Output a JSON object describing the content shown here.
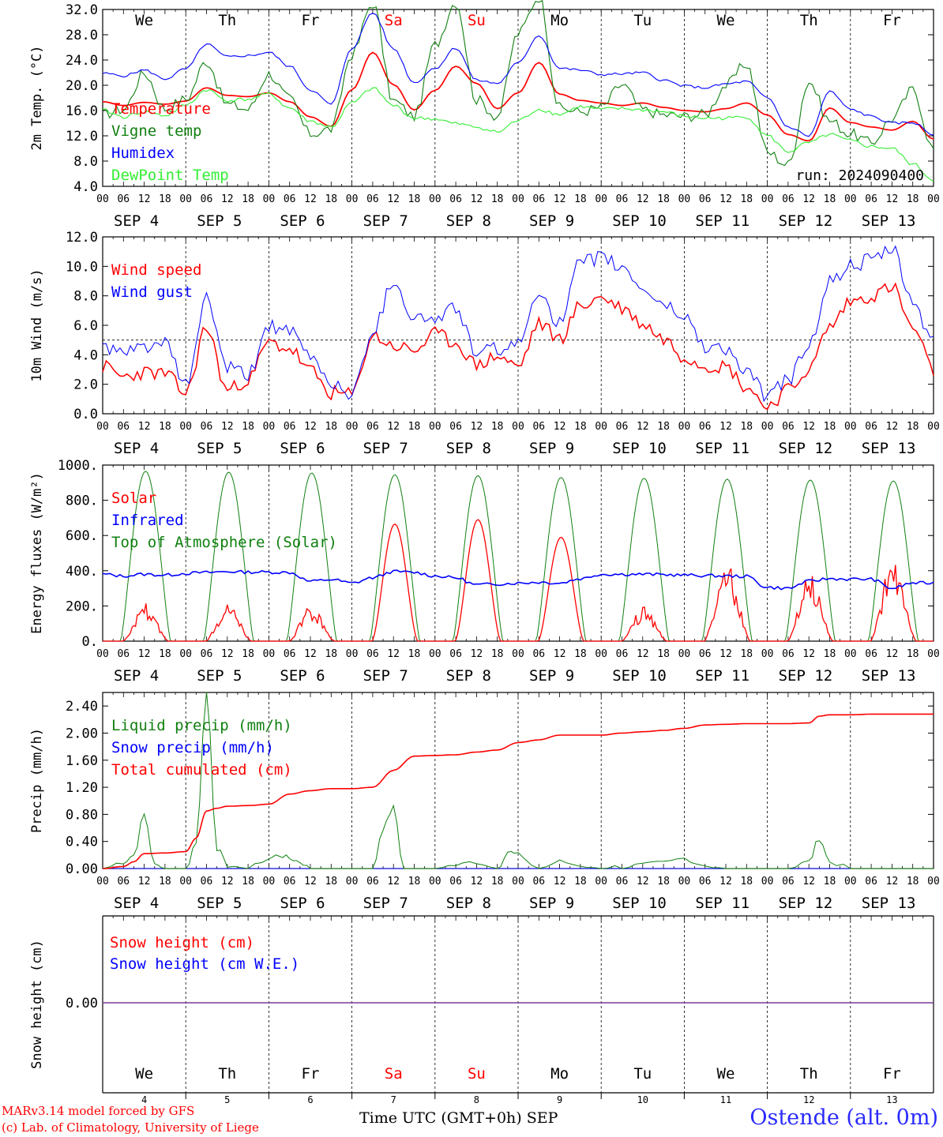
{
  "colors": {
    "red": "#ff0000",
    "green": "#108010",
    "blue": "#0000ff",
    "lightgreen": "#33ee33",
    "weekend": "#ff0000",
    "axis": "#000000",
    "snow_line": "#7a3a9a"
  },
  "day_labels": [
    "We",
    "Th",
    "Fr",
    "Sa",
    "Su",
    "Mo",
    "Tu",
    "We",
    "Th",
    "Fr"
  ],
  "weekend_days": [
    "Sa",
    "Su"
  ],
  "hour_ticks": [
    "00",
    "06",
    "12",
    "18"
  ],
  "date_labels": [
    "SEP  4",
    "SEP  5",
    "SEP  6",
    "SEP  7",
    "SEP  8",
    "SEP  9",
    "SEP 10",
    "SEP 11",
    "SEP 12",
    "SEP 13"
  ],
  "bottom_day_numbers": [
    "4",
    "5",
    "6",
    "7",
    "8",
    "9",
    "10",
    "11",
    "12",
    "13"
  ],
  "footer": {
    "credit_line1": "MARv3.14 model forced by GFS",
    "credit_line2": "(c) Lab. of Climatology, University of Liege",
    "xaxis_title": "Time UTC (GMT+0h) SEP",
    "station": "Ostende (alt. 0m)"
  },
  "chart_data": [
    {
      "type": "line",
      "ylabel": "2m Temp. (°C)",
      "ylim": [
        4.0,
        32.0
      ],
      "yticks": [
        "32.0",
        "28.0",
        "24.0",
        "20.0",
        "16.0",
        "12.0",
        "8.0",
        "4.0"
      ],
      "annotation": "run: 2024090400",
      "x_unit": "hours since 2024-09-04 00 UTC",
      "series": [
        {
          "name": "Temperature",
          "color": "red",
          "x": [
            0,
            6,
            12,
            18,
            24,
            30,
            36,
            42,
            48,
            54,
            60,
            66,
            72,
            78,
            84,
            90,
            96,
            102,
            108,
            114,
            120,
            126,
            132,
            138,
            144,
            150,
            156,
            162,
            168,
            174,
            180,
            186,
            192,
            198,
            204,
            210,
            216,
            222,
            228,
            234,
            240
          ],
          "y": [
            17.4,
            16.8,
            17.3,
            17.0,
            17.5,
            19.6,
            18.4,
            18.2,
            18.8,
            17.4,
            15.0,
            13.5,
            19.3,
            25.2,
            20.1,
            16.1,
            19.2,
            23.0,
            20.3,
            16.3,
            18.8,
            23.6,
            18.6,
            17.6,
            17.2,
            16.8,
            17.2,
            16.5,
            16.0,
            15.8,
            16.3,
            17.2,
            15.3,
            12.2,
            11.2,
            16.4,
            14.1,
            13.4,
            12.9,
            14.3,
            11.5
          ]
        },
        {
          "name": "Vigne temp",
          "color": "green",
          "x": [
            0,
            6,
            12,
            18,
            24,
            30,
            36,
            42,
            48,
            54,
            60,
            66,
            72,
            78,
            84,
            90,
            96,
            102,
            108,
            114,
            120,
            126,
            132,
            138,
            144,
            150,
            156,
            162,
            168,
            174,
            180,
            186,
            192,
            198,
            204,
            210,
            216,
            222,
            228,
            234,
            240
          ],
          "y": [
            15.4,
            16.2,
            21.9,
            16.3,
            17.8,
            23.8,
            17.0,
            16.2,
            21.8,
            17.8,
            12.3,
            13.1,
            24.9,
            33.0,
            17.5,
            15.1,
            26.4,
            33.2,
            17.7,
            15.1,
            28.2,
            34.0,
            16.4,
            15.8,
            16.5,
            20.1,
            16.1,
            15.3,
            15.1,
            15.4,
            20.0,
            23.4,
            9.4,
            7.4,
            20.6,
            14.4,
            12.3,
            10.9,
            14.7,
            19.3,
            9.9
          ]
        },
        {
          "name": "Humidex",
          "color": "blue",
          "x": [
            0,
            6,
            12,
            18,
            24,
            30,
            36,
            42,
            48,
            54,
            60,
            66,
            72,
            78,
            84,
            90,
            96,
            102,
            108,
            114,
            120,
            126,
            132,
            138,
            144,
            150,
            156,
            162,
            168,
            174,
            180,
            186,
            192,
            198,
            204,
            210,
            216,
            222,
            228,
            234,
            240
          ],
          "y": [
            21.9,
            21.5,
            22.4,
            21.0,
            22.6,
            26.5,
            24.5,
            24.7,
            25.2,
            23.0,
            19.3,
            17.0,
            25.9,
            31.5,
            25.8,
            20.4,
            22.7,
            25.9,
            20.8,
            20.3,
            23.5,
            27.9,
            22.7,
            22.4,
            21.7,
            21.8,
            22.0,
            20.8,
            19.9,
            19.6,
            20.2,
            20.6,
            18.0,
            13.4,
            12.0,
            19.0,
            16.2,
            15.1,
            14.0,
            14.1,
            12.2
          ]
        },
        {
          "name": "DewPoint Temp",
          "color": "lightgreen",
          "x": [
            0,
            6,
            12,
            18,
            24,
            30,
            36,
            42,
            48,
            54,
            60,
            66,
            72,
            78,
            84,
            90,
            96,
            102,
            108,
            114,
            120,
            126,
            132,
            138,
            144,
            150,
            156,
            162,
            168,
            174,
            180,
            186,
            192,
            198,
            204,
            210,
            216,
            222,
            228,
            234,
            240
          ],
          "y": [
            16.0,
            15.0,
            15.8,
            15.2,
            16.8,
            19.3,
            17.6,
            17.8,
            18.6,
            16.4,
            14.3,
            13.4,
            17.2,
            19.5,
            16.8,
            14.8,
            14.7,
            13.9,
            13.4,
            12.6,
            14.4,
            16.2,
            15.4,
            16.6,
            16.2,
            16.3,
            16.1,
            15.8,
            15.1,
            14.8,
            14.8,
            15.0,
            12.0,
            9.5,
            10.9,
            12.2,
            11.2,
            10.3,
            10.0,
            7.5,
            5.0
          ]
        }
      ]
    },
    {
      "type": "line",
      "ylabel": "10m Wind (m/s)",
      "ylim": [
        0.0,
        12.0
      ],
      "yticks": [
        "12.0",
        "10.0",
        "8.0",
        "6.0",
        "4.0",
        "2.0",
        "0.0"
      ],
      "x_unit": "hours since 2024-09-04 00 UTC",
      "reference_line": 5.0,
      "series": [
        {
          "name": "Wind speed",
          "color": "red",
          "x": [
            0,
            6,
            12,
            18,
            24,
            30,
            36,
            42,
            48,
            54,
            60,
            66,
            72,
            78,
            84,
            90,
            96,
            102,
            108,
            114,
            120,
            126,
            132,
            138,
            144,
            150,
            156,
            162,
            168,
            174,
            180,
            186,
            192,
            198,
            204,
            210,
            216,
            222,
            228,
            234,
            240
          ],
          "y": [
            3.2,
            2.5,
            2.8,
            2.7,
            1.4,
            5.8,
            1.6,
            2.3,
            4.8,
            4.4,
            2.9,
            1.4,
            1.3,
            5.3,
            4.6,
            4.3,
            5.4,
            4.8,
            3.3,
            3.9,
            3.2,
            6.1,
            5.1,
            7.3,
            7.9,
            7.2,
            6.1,
            5.1,
            3.9,
            3.3,
            3.2,
            1.8,
            0.5,
            1.6,
            3.0,
            5.9,
            7.6,
            8.0,
            8.6,
            5.8,
            2.9
          ]
        },
        {
          "name": "Wind gust",
          "color": "blue",
          "x": [
            0,
            6,
            12,
            18,
            24,
            30,
            36,
            42,
            48,
            54,
            60,
            66,
            72,
            78,
            84,
            90,
            96,
            102,
            108,
            114,
            120,
            126,
            132,
            138,
            144,
            150,
            156,
            162,
            168,
            174,
            180,
            186,
            192,
            198,
            204,
            210,
            216,
            222,
            228,
            234,
            240
          ],
          "y": [
            4.6,
            4.0,
            4.6,
            4.7,
            1.9,
            7.8,
            3.1,
            2.6,
            6.0,
            5.5,
            3.9,
            2.1,
            1.3,
            5.6,
            9.0,
            6.5,
            6.4,
            7.2,
            4.1,
            4.4,
            4.6,
            8.4,
            6.1,
            10.2,
            10.6,
            9.9,
            8.5,
            7.4,
            6.6,
            4.6,
            4.4,
            2.8,
            1.2,
            2.3,
            4.7,
            8.9,
            10.0,
            10.4,
            11.1,
            7.6,
            4.8
          ]
        }
      ]
    },
    {
      "type": "line",
      "ylabel": "Energy fluxes (W/m²)",
      "ylim": [
        0,
        1000
      ],
      "yticks": [
        "1000.",
        "800.",
        "600.",
        "400.",
        "200.",
        "0."
      ],
      "x_unit": "hours since 2024-09-04 00 UTC",
      "series": [
        {
          "name": "Solar",
          "color": "red",
          "daily_peak": [
            220,
            225,
            205,
            665,
            690,
            590,
            195,
            450,
            385,
            470
          ]
        },
        {
          "name": "Infrared",
          "color": "blue",
          "x": [
            0,
            6,
            12,
            18,
            24,
            30,
            36,
            42,
            48,
            54,
            60,
            66,
            72,
            78,
            84,
            90,
            96,
            102,
            108,
            114,
            120,
            126,
            132,
            138,
            144,
            150,
            156,
            162,
            168,
            174,
            180,
            186,
            192,
            198,
            204,
            210,
            216,
            222,
            228,
            234,
            240
          ],
          "y": [
            380,
            370,
            380,
            375,
            385,
            390,
            395,
            392,
            392,
            390,
            340,
            350,
            330,
            360,
            395,
            390,
            370,
            360,
            320,
            325,
            330,
            335,
            330,
            355,
            380,
            380,
            380,
            378,
            375,
            372,
            370,
            368,
            305,
            300,
            340,
            355,
            352,
            352,
            300,
            330,
            330
          ]
        },
        {
          "name": "Top of Atmosphere (Solar)",
          "color": "green",
          "daily_peak": [
            965,
            960,
            955,
            945,
            940,
            930,
            925,
            920,
            915,
            910
          ]
        }
      ]
    },
    {
      "type": "line",
      "ylabel": "Precip (mm/h)",
      "ylim": [
        0.0,
        2.6
      ],
      "yticks": [
        "2.40",
        "2.00",
        "1.60",
        "1.20",
        "0.80",
        "0.40",
        "0.00"
      ],
      "x_unit": "hours since 2024-09-04 00 UTC",
      "series": [
        {
          "name": "Liquid precip (mm/h)",
          "color": "green",
          "x": [
            0,
            6,
            9,
            12,
            15,
            18,
            24,
            27,
            30,
            33,
            36,
            42,
            48,
            51,
            54,
            57,
            60,
            66,
            72,
            78,
            81,
            84,
            87,
            90,
            96,
            102,
            108,
            114,
            117,
            120,
            126,
            132,
            138,
            144,
            150,
            156,
            162,
            168,
            174,
            180,
            186,
            192,
            198,
            204,
            207,
            210,
            216,
            222,
            228,
            234,
            240
          ],
          "y": [
            0.0,
            0.1,
            0.2,
            0.8,
            0.05,
            0.0,
            0.0,
            0.4,
            2.6,
            0.3,
            0.05,
            0.0,
            0.15,
            0.2,
            0.15,
            0.1,
            0.0,
            0.0,
            0.0,
            0.0,
            0.6,
            0.9,
            0.0,
            0.0,
            0.0,
            0.05,
            0.1,
            0.0,
            0.25,
            0.2,
            0.0,
            0.1,
            0.05,
            0.0,
            0.03,
            0.05,
            0.08,
            0.15,
            0.05,
            0.0,
            0.0,
            0.0,
            0.0,
            0.1,
            0.45,
            0.1,
            0.0,
            0.0,
            0.0,
            0.0,
            0.0
          ]
        },
        {
          "name": "Snow precip (mm/h)",
          "color": "blue",
          "x": [
            0,
            240
          ],
          "y": [
            0,
            0
          ]
        },
        {
          "name": "Total cumulated (cm)",
          "color": "red",
          "x": [
            0,
            6,
            9,
            12,
            18,
            24,
            27,
            30,
            33,
            36,
            42,
            48,
            54,
            60,
            66,
            72,
            78,
            84,
            90,
            96,
            102,
            108,
            114,
            120,
            126,
            132,
            138,
            144,
            150,
            156,
            162,
            168,
            174,
            180,
            186,
            192,
            198,
            204,
            207,
            210,
            216,
            222,
            228,
            234,
            240
          ],
          "y": [
            0.0,
            0.03,
            0.1,
            0.22,
            0.23,
            0.25,
            0.45,
            0.85,
            0.89,
            0.92,
            0.93,
            0.95,
            1.1,
            1.15,
            1.18,
            1.18,
            1.2,
            1.45,
            1.66,
            1.67,
            1.68,
            1.72,
            1.75,
            1.86,
            1.9,
            1.97,
            1.97,
            1.97,
            2.0,
            2.02,
            2.04,
            2.07,
            2.12,
            2.13,
            2.14,
            2.14,
            2.14,
            2.15,
            2.25,
            2.27,
            2.27,
            2.28,
            2.28,
            2.28,
            2.28
          ]
        }
      ]
    },
    {
      "type": "line",
      "ylabel": "Snow height (cm)",
      "yticks": [
        "0.00"
      ],
      "x_unit": "hours since 2024-09-04 00 UTC",
      "series": [
        {
          "name": "Snow height (cm)",
          "color": "red",
          "x": [
            0,
            240
          ],
          "y": [
            0,
            0
          ]
        },
        {
          "name": "Snow height (cm W.E.)",
          "color": "blue",
          "x": [
            0,
            240
          ],
          "y": [
            0,
            0
          ]
        }
      ]
    }
  ]
}
